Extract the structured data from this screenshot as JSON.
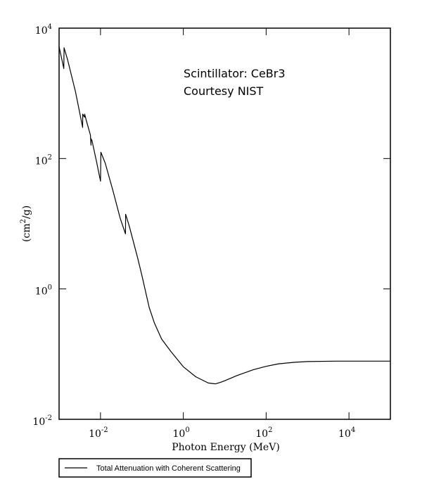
{
  "chart_data": {
    "type": "line",
    "scale": {
      "x": "log",
      "y": "log"
    },
    "xlim": [
      0.001,
      100000
    ],
    "ylim": [
      0.01,
      10000
    ],
    "xlabel": "Photon Energy (MeV)",
    "ylabel": {
      "prefix": "(cm",
      "sup": "2",
      "suffix": "/g)"
    },
    "x_ticks": [
      {
        "value": 0.01,
        "base": "10",
        "exp": "-2"
      },
      {
        "value": 1,
        "base": "10",
        "exp": "0"
      },
      {
        "value": 100,
        "base": "10",
        "exp": "2"
      },
      {
        "value": 10000,
        "base": "10",
        "exp": "4"
      }
    ],
    "y_ticks": [
      {
        "value": 0.01,
        "base": "10",
        "exp": "-2"
      },
      {
        "value": 1,
        "base": "10",
        "exp": "0"
      },
      {
        "value": 100,
        "base": "10",
        "exp": "2"
      },
      {
        "value": 10000,
        "base": "10",
        "exp": "4"
      }
    ],
    "annotations": [
      "Scintillator: CeBr3",
      "Courtesy NIST"
    ],
    "grid": false,
    "legend": {
      "placement": "bottom-left",
      "label": "Total Attenuation with Coherent Scattering"
    },
    "series": [
      {
        "name": "Total Attenuation with Coherent Scattering",
        "color": "#000000",
        "points": [
          [
            0.001,
            5200
          ],
          [
            0.0013,
            2400
          ],
          [
            0.00132,
            5000
          ],
          [
            0.0016,
            3300
          ],
          [
            0.0025,
            1050
          ],
          [
            0.0037,
            300
          ],
          [
            0.00372,
            480
          ],
          [
            0.0041,
            430
          ],
          [
            0.00415,
            480
          ],
          [
            0.0045,
            390
          ],
          [
            0.0057,
            230
          ],
          [
            0.0059,
            160
          ],
          [
            0.00592,
            200
          ],
          [
            0.0062,
            190
          ],
          [
            0.008,
            90
          ],
          [
            0.01,
            45
          ],
          [
            0.0102,
            125
          ],
          [
            0.013,
            85
          ],
          [
            0.02,
            32
          ],
          [
            0.03,
            12
          ],
          [
            0.0402,
            7
          ],
          [
            0.0404,
            14
          ],
          [
            0.05,
            9
          ],
          [
            0.08,
            2.9
          ],
          [
            0.1,
            1.6
          ],
          [
            0.15,
            0.52
          ],
          [
            0.2,
            0.3
          ],
          [
            0.3,
            0.17
          ],
          [
            0.5,
            0.11
          ],
          [
            1,
            0.064
          ],
          [
            2,
            0.045
          ],
          [
            4,
            0.036
          ],
          [
            6,
            0.035
          ],
          [
            8,
            0.037
          ],
          [
            10,
            0.039
          ],
          [
            20,
            0.047
          ],
          [
            50,
            0.058
          ],
          [
            100,
            0.065
          ],
          [
            200,
            0.071
          ],
          [
            500,
            0.075
          ],
          [
            1000,
            0.077
          ],
          [
            5000,
            0.078
          ],
          [
            100000,
            0.078
          ]
        ]
      }
    ]
  }
}
